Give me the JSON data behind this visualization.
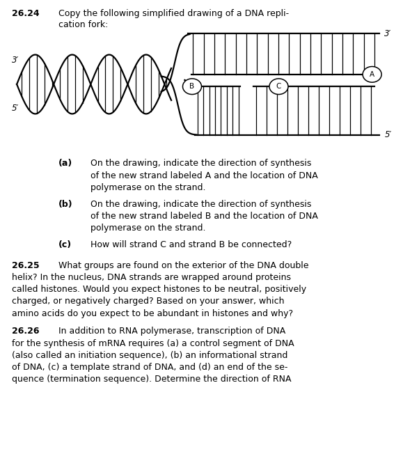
{
  "background": "#ffffff",
  "title_number": "26.24",
  "title_line1": "Copy the following simplified drawing of a DNA repli-",
  "title_line2": "cation fork:",
  "label_3prime_left": "3′",
  "label_5prime_left": "5′",
  "label_3prime_right": "3′",
  "label_5prime_right": "5′",
  "label_A": "A",
  "label_B": "B",
  "label_C": "C",
  "qa_bold": "(a)",
  "qa_text1": "On the drawing, indicate the direction of synthesis",
  "qa_text2": "of the new strand labeled A and the location of DNA",
  "qa_text3": "polymerase on the strand.",
  "qb_bold": "(b)",
  "qb_text1": "On the drawing, indicate the direction of synthesis",
  "qb_text2": "of the new strand labeled B and the location of DNA",
  "qb_text3": "polymerase on the strand.",
  "qc_bold": "(c)",
  "qc_text": "How will strand C and strand B be connected?",
  "n2625": "26.25",
  "t2625_1": "What groups are found on the exterior of the DNA double",
  "t2625_2": "helix? In the nucleus, DNA strands are wrapped around proteins",
  "t2625_3": "called histones. Would you expect histones to be neutral, positively",
  "t2625_4": "charged, or negatively charged? Based on your answer, which",
  "t2625_5": "amino acids do you expect to be abundant in histones and why?",
  "n2626": "26.26",
  "t2626_1": "In addition to RNA polymerase, transcription of DNA",
  "t2626_2": "for the synthesis of mRNA requires (a) a control segment of DNA",
  "t2626_3": "(also called an initiation sequence), (b) an informational strand",
  "t2626_4": "of DNA, (c) a template strand of DNA, and (d) an end of the se-",
  "t2626_5": "quence (termination sequence). Determine the direction of RNA"
}
